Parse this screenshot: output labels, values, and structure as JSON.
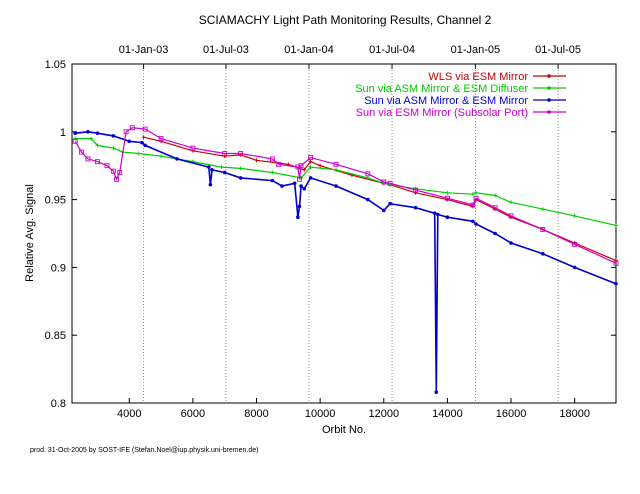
{
  "chart_data": {
    "type": "line",
    "title": "SCIAMACHY Light Path Monitoring Results, Channel 2",
    "xlabel": "Orbit No.",
    "ylabel": "Relative Avg. Signal",
    "xlim": [
      2200,
      19300
    ],
    "ylim": [
      0.8,
      1.05
    ],
    "x_ticks": [
      4000,
      6000,
      8000,
      10000,
      12000,
      14000,
      16000,
      18000
    ],
    "y_ticks": [
      0.8,
      0.85,
      0.9,
      0.95,
      1.0,
      1.05
    ],
    "x_tick_labels": [
      "4000",
      "6000",
      "8000",
      "10000",
      "12000",
      "14000",
      "16000",
      "18000"
    ],
    "y_tick_labels": [
      "0.8",
      "0.85",
      "0.9",
      "0.95",
      "1",
      "1.05"
    ],
    "top_axis": {
      "labels": [
        "01-Jan-03",
        "01-Jul-03",
        "01-Jan-04",
        "01-Jul-04",
        "01-Jan-05",
        "01-Jul-05"
      ],
      "orbits": [
        4450,
        7040,
        9650,
        12260,
        14880,
        17480
      ]
    },
    "grid": false,
    "legend_position": "top-right",
    "series": [
      {
        "name": "WLS via ESM Mirror",
        "color": "#cc0000",
        "x": [
          4450,
          5000,
          6000,
          7000,
          7500,
          8000,
          9000,
          9500,
          9700,
          10000,
          11000,
          12000,
          12200,
          13000,
          14000,
          14800,
          14900,
          15500,
          16000,
          17000,
          18000,
          19300
        ],
        "y": [
          0.996,
          0.993,
          0.986,
          0.982,
          0.983,
          0.979,
          0.976,
          0.972,
          0.978,
          0.975,
          0.968,
          0.962,
          0.961,
          0.955,
          0.95,
          0.945,
          0.95,
          0.943,
          0.937,
          0.928,
          0.918,
          0.905
        ]
      },
      {
        "name": "Sun via ASM Mirror & ESM Diffuser",
        "color": "#00cc00",
        "x": [
          2300,
          2800,
          3000,
          3500,
          3800,
          4300,
          5000,
          6000,
          6900,
          7500,
          8500,
          9400,
          9700,
          10500,
          11500,
          12000,
          12200,
          13000,
          14000,
          14800,
          14900,
          15500,
          16000,
          17000,
          18000,
          19300
        ],
        "y": [
          0.995,
          0.995,
          0.99,
          0.988,
          0.985,
          0.984,
          0.982,
          0.978,
          0.974,
          0.973,
          0.97,
          0.966,
          0.974,
          0.972,
          0.966,
          0.962,
          0.961,
          0.958,
          0.955,
          0.954,
          0.955,
          0.953,
          0.948,
          0.943,
          0.938,
          0.931
        ]
      },
      {
        "name": "Sun via ASM Mirror & ESM Mirror",
        "color": "#0000cc",
        "x": [
          2300,
          2700,
          3000,
          3500,
          4000,
          4400,
          4500,
          5500,
          6500,
          6550,
          6600,
          7000,
          7500,
          8500,
          8800,
          9200,
          9300,
          9350,
          9400,
          9500,
          9700,
          10500,
          11500,
          12000,
          12200,
          13000,
          13600,
          13650,
          13700,
          14000,
          14800,
          14900,
          15500,
          16000,
          17000,
          18000,
          19300
        ],
        "y": [
          0.999,
          1.0,
          0.999,
          0.997,
          0.993,
          0.992,
          0.99,
          0.98,
          0.974,
          0.961,
          0.972,
          0.97,
          0.966,
          0.964,
          0.96,
          0.962,
          0.937,
          0.945,
          0.96,
          0.958,
          0.966,
          0.96,
          0.95,
          0.942,
          0.947,
          0.944,
          0.94,
          0.808,
          0.939,
          0.937,
          0.934,
          0.932,
          0.925,
          0.918,
          0.91,
          0.9,
          0.888
        ]
      },
      {
        "name": "Sun via ESM Mirror (Subsolar Port)",
        "color": "#cc00cc",
        "x": [
          2300,
          2500,
          2700,
          3000,
          3300,
          3500,
          3600,
          3700,
          3900,
          4100,
          4500,
          5000,
          6000,
          7000,
          7500,
          8500,
          8700,
          9300,
          9350,
          9400,
          9700,
          10500,
          11500,
          12000,
          12200,
          13000,
          14000,
          14800,
          14900,
          15500,
          16000,
          17000,
          18000,
          19300
        ],
        "y": [
          0.993,
          0.985,
          0.98,
          0.978,
          0.975,
          0.971,
          0.965,
          0.97,
          1.0,
          1.003,
          1.002,
          0.995,
          0.988,
          0.984,
          0.984,
          0.98,
          0.976,
          0.974,
          0.965,
          0.975,
          0.981,
          0.976,
          0.969,
          0.963,
          0.962,
          0.957,
          0.951,
          0.946,
          0.951,
          0.944,
          0.938,
          0.928,
          0.917,
          0.903
        ]
      }
    ]
  },
  "footer": {
    "credit": "prod. 31-Oct-2005 by SOST-IFE (Stefan.Noel@iup.physik.uni-bremen.de)"
  }
}
